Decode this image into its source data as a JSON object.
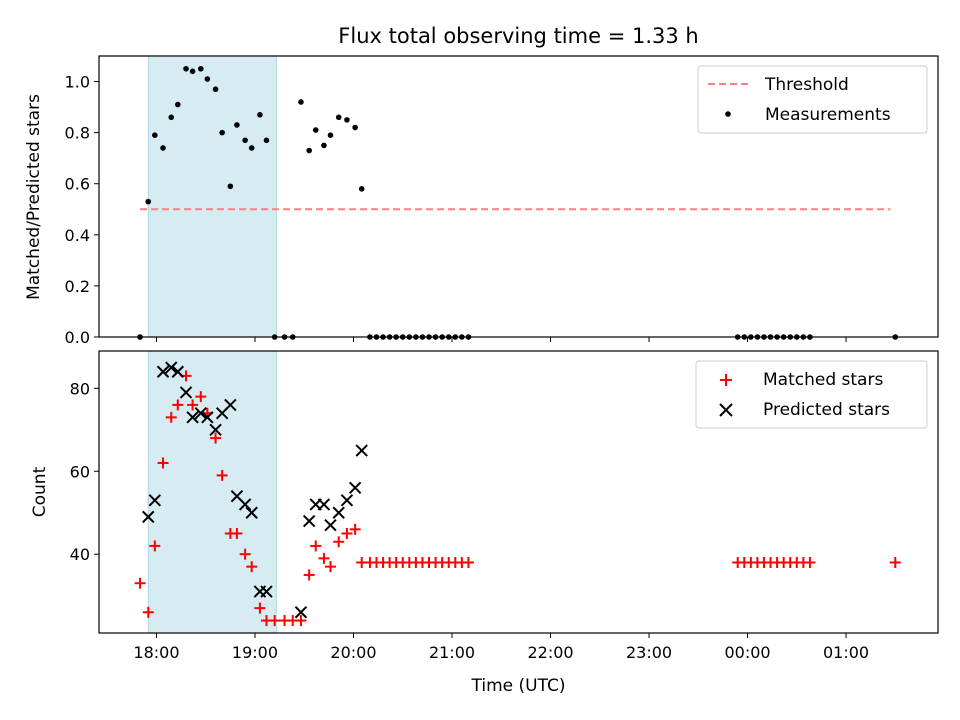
{
  "title": "Flux total observing time = 1.33 h",
  "chart_data": [
    {
      "type": "scatter",
      "ylabel": "Matched/Predicted stars",
      "ylim": [
        0,
        1.1
      ],
      "yticks": [
        0.0,
        0.2,
        0.4,
        0.6,
        0.8,
        1.0
      ],
      "ytick_labels": [
        "0.0",
        "0.2",
        "0.4",
        "0.6",
        "0.8",
        "1.0"
      ],
      "legend_position": "top-right",
      "highlight_band": {
        "x_start": "17:55",
        "x_end": "19:13",
        "color": "#add8e6"
      },
      "threshold": {
        "name": "Threshold",
        "value": 0.5,
        "x_start": "17:50",
        "x_end": "01:27",
        "color": "#ff8080",
        "style": "dashed"
      },
      "series": [
        {
          "name": "Measurements",
          "marker": "dot",
          "color": "#000000",
          "x": [
            "17:50",
            "17:55",
            "17:59",
            "18:04",
            "18:09",
            "18:13",
            "18:18",
            "18:22",
            "18:27",
            "18:31",
            "18:36",
            "18:40",
            "18:45",
            "18:49",
            "18:54",
            "18:58",
            "19:03",
            "19:07",
            "19:12",
            "19:18",
            "19:23",
            "19:28",
            "19:33",
            "19:37",
            "19:42",
            "19:46",
            "19:51",
            "19:56",
            "20:01",
            "20:05",
            "20:10",
            "20:14",
            "20:18",
            "20:22",
            "20:26",
            "20:30",
            "20:34",
            "20:38",
            "20:42",
            "20:46",
            "20:50",
            "20:54",
            "20:58",
            "21:02",
            "21:06",
            "21:10",
            "23:54",
            "23:58",
            "00:02",
            "00:06",
            "00:10",
            "00:14",
            "00:18",
            "00:22",
            "00:26",
            "00:30",
            "00:34",
            "00:38",
            "01:30"
          ],
          "y": [
            0.0,
            0.53,
            0.79,
            0.74,
            0.86,
            0.91,
            1.05,
            1.04,
            1.05,
            1.01,
            0.97,
            0.8,
            0.59,
            0.83,
            0.77,
            0.74,
            0.87,
            0.77,
            0.0,
            0.0,
            0.0,
            0.92,
            0.73,
            0.81,
            0.75,
            0.79,
            0.86,
            0.85,
            0.82,
            0.58,
            0.0,
            0.0,
            0.0,
            0.0,
            0.0,
            0.0,
            0.0,
            0.0,
            0.0,
            0.0,
            0.0,
            0.0,
            0.0,
            0.0,
            0.0,
            0.0,
            0.0,
            0.0,
            0.0,
            0.0,
            0.0,
            0.0,
            0.0,
            0.0,
            0.0,
            0.0,
            0.0,
            0.0,
            0.0
          ]
        }
      ]
    },
    {
      "type": "scatter",
      "xlabel": "Time (UTC)",
      "ylabel": "Count",
      "xlim": [
        "17:25",
        "01:56"
      ],
      "xticks": [
        "18:00",
        "19:00",
        "20:00",
        "21:00",
        "22:00",
        "23:00",
        "00:00",
        "01:00"
      ],
      "ylim": [
        21,
        89
      ],
      "yticks": [
        40,
        60,
        80
      ],
      "legend_position": "top-right",
      "highlight_band": {
        "x_start": "17:55",
        "x_end": "19:13",
        "color": "#add8e6"
      },
      "series": [
        {
          "name": "Matched stars",
          "marker": "plus",
          "color": "#ff0000",
          "x": [
            "17:50",
            "17:55",
            "17:59",
            "18:04",
            "18:09",
            "18:13",
            "18:18",
            "18:22",
            "18:27",
            "18:31",
            "18:36",
            "18:40",
            "18:45",
            "18:49",
            "18:54",
            "18:58",
            "19:03",
            "19:07",
            "19:12",
            "19:18",
            "19:23",
            "19:28",
            "19:33",
            "19:37",
            "19:42",
            "19:46",
            "19:51",
            "19:56",
            "20:01",
            "20:05",
            "20:10",
            "20:14",
            "20:18",
            "20:22",
            "20:26",
            "20:30",
            "20:34",
            "20:38",
            "20:42",
            "20:46",
            "20:50",
            "20:54",
            "20:58",
            "21:02",
            "21:06",
            "21:10",
            "23:54",
            "23:58",
            "00:02",
            "00:06",
            "00:10",
            "00:14",
            "00:18",
            "00:22",
            "00:26",
            "00:30",
            "00:34",
            "00:38",
            "01:30"
          ],
          "y": [
            33,
            26,
            42,
            62,
            73,
            76,
            83,
            76,
            78,
            74,
            68,
            59,
            45,
            45,
            40,
            37,
            27,
            24,
            24,
            24,
            24,
            24,
            35,
            42,
            39,
            37,
            43,
            45,
            46,
            38,
            38,
            38,
            38,
            38,
            38,
            38,
            38,
            38,
            38,
            38,
            38,
            38,
            38,
            38,
            38,
            38,
            38,
            38,
            38,
            38,
            38,
            38,
            38,
            38,
            38,
            38,
            38,
            38,
            38
          ]
        },
        {
          "name": "Predicted stars",
          "marker": "x",
          "color": "#000000",
          "x": [
            "17:55",
            "17:59",
            "18:04",
            "18:09",
            "18:13",
            "18:18",
            "18:22",
            "18:27",
            "18:31",
            "18:36",
            "18:40",
            "18:45",
            "18:49",
            "18:54",
            "18:58",
            "19:03",
            "19:07",
            "19:28",
            "19:33",
            "19:37",
            "19:42",
            "19:46",
            "19:51",
            "19:56",
            "20:01",
            "20:05"
          ],
          "y": [
            49,
            53,
            84,
            85,
            84,
            79,
            73,
            74,
            73,
            70,
            74,
            76,
            54,
            52,
            50,
            31,
            31,
            26,
            48,
            52,
            52,
            47,
            50,
            53,
            56,
            65
          ]
        }
      ]
    }
  ]
}
